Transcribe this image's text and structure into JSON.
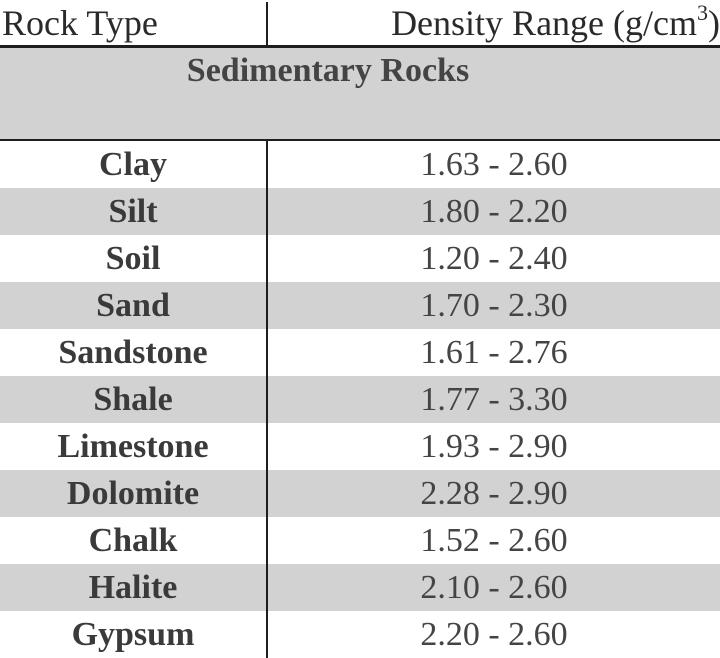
{
  "headers": {
    "rock_type": "Rock Type",
    "density_prefix": "Density Range (g/cm",
    "density_sup": "3",
    "density_suffix": ")"
  },
  "section": {
    "title": "Sedimentary Rocks"
  },
  "rows": [
    {
      "rock": "Clay",
      "range": "1.63 - 2.60"
    },
    {
      "rock": "Silt",
      "range": "1.80 - 2.20"
    },
    {
      "rock": "Soil",
      "range": "1.20 - 2.40"
    },
    {
      "rock": "Sand",
      "range": "1.70 - 2.30"
    },
    {
      "rock": "Sandstone",
      "range": "1.61 - 2.76"
    },
    {
      "rock": "Shale",
      "range": "1.77 - 3.30"
    },
    {
      "rock": "Limestone",
      "range": "1.93 - 2.90"
    },
    {
      "rock": "Dolomite",
      "range": "2.28 - 2.90"
    },
    {
      "rock": "Chalk",
      "range": "1.52 - 2.60"
    },
    {
      "rock": "Halite",
      "range": "2.10 - 2.60"
    },
    {
      "rock": "Gypsum",
      "range": "2.20 - 2.60"
    }
  ]
}
